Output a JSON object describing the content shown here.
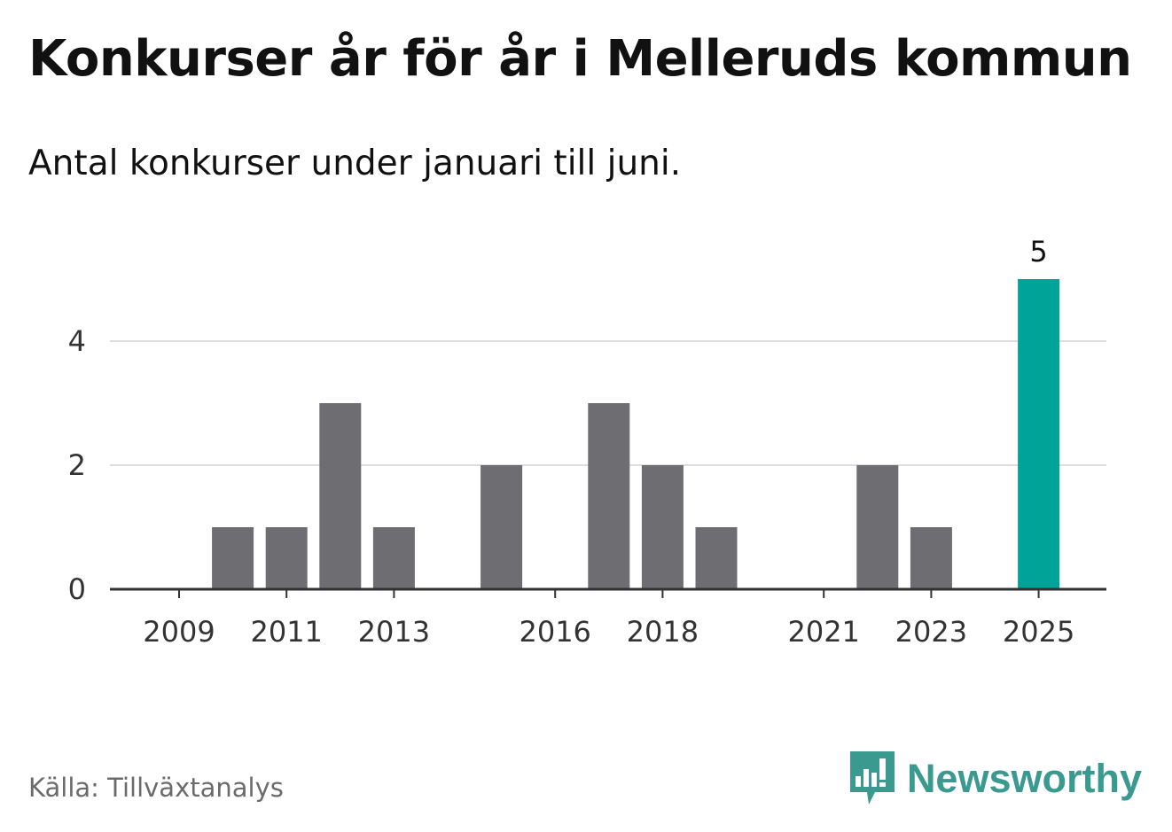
{
  "title": "Konkurser år för år i Melleruds kommun",
  "subtitle": "Antal konkurser under januari till juni.",
  "source": "Källa: Tillväxtanalys",
  "brand": {
    "name": "Newsworthy",
    "icon": "newsworthy-chart-bubble-icon",
    "color": "#3a9a90"
  },
  "colors": {
    "bar": "#6e6d72",
    "highlight": "#00a398",
    "grid": "#dddddd",
    "axis": "#333333"
  },
  "chart_data": {
    "type": "bar",
    "title": "Konkurser år för år i Melleruds kommun",
    "subtitle": "Antal konkurser under januari till juni.",
    "xlabel": "",
    "ylabel": "",
    "categories": [
      "2009",
      "2010",
      "2011",
      "2012",
      "2013",
      "2014",
      "2015",
      "2016",
      "2017",
      "2018",
      "2019",
      "2020",
      "2021",
      "2022",
      "2023",
      "2024",
      "2025"
    ],
    "values": [
      0,
      1,
      1,
      3,
      1,
      0,
      2,
      0,
      3,
      2,
      1,
      0,
      0,
      2,
      1,
      0,
      5
    ],
    "x_tick_labels": [
      "2009",
      "2011",
      "2013",
      "2016",
      "2018",
      "2021",
      "2023",
      "2025"
    ],
    "y_ticks": [
      0,
      2,
      4
    ],
    "ylim": [
      0,
      5
    ],
    "grid": true,
    "legend": false,
    "highlight": {
      "category": "2025",
      "label": "5"
    }
  }
}
